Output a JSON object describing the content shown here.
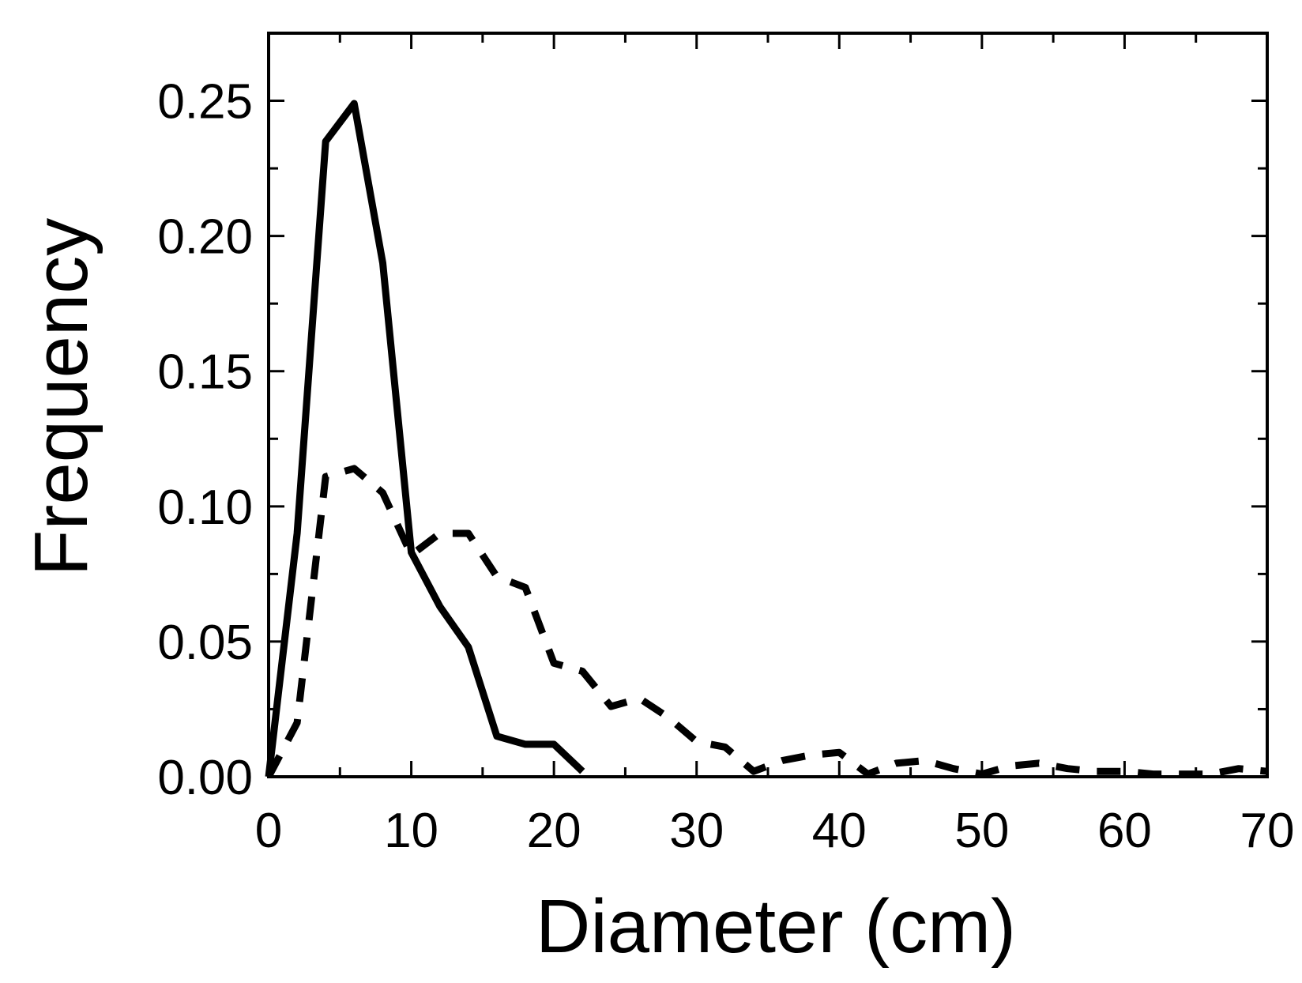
{
  "chart_data": {
    "type": "line",
    "title": "",
    "xlabel": "Diameter (cm)",
    "ylabel": "Frequency",
    "xlim": [
      0,
      70
    ],
    "ylim": [
      0,
      0.275
    ],
    "grid": false,
    "legend": "none",
    "x_ticks": [
      0,
      10,
      20,
      30,
      40,
      50,
      60,
      70
    ],
    "x_tick_labels": [
      "0",
      "10",
      "20",
      "30",
      "40",
      "50",
      "60",
      "70"
    ],
    "y_ticks": [
      0,
      0.05,
      0.1,
      0.15,
      0.2,
      0.25
    ],
    "y_tick_labels": [
      "0.00",
      "0.05",
      "0.10",
      "0.15",
      "0.20",
      "0.25"
    ],
    "y_minor_ticks": [
      0.025,
      0.075,
      0.125,
      0.175,
      0.225
    ],
    "series": [
      {
        "style": "solid",
        "color": "#000000",
        "x": [
          0,
          2,
          4,
          6,
          8,
          10,
          12,
          14,
          16,
          18,
          20,
          22
        ],
        "y": [
          0,
          0.09,
          0.235,
          0.249,
          0.19,
          0.083,
          0.063,
          0.048,
          0.015,
          0.012,
          0.012,
          0.002
        ]
      },
      {
        "style": "dashed",
        "color": "#000000",
        "x": [
          0,
          2,
          4,
          6,
          8,
          10,
          12,
          14,
          16,
          18,
          20,
          22,
          24,
          26,
          28,
          30,
          32,
          34,
          36,
          38,
          40,
          42,
          44,
          46,
          48,
          50,
          52,
          54,
          56,
          58,
          60,
          62,
          64,
          66,
          68,
          70
        ],
        "y": [
          0,
          0.02,
          0.111,
          0.114,
          0.105,
          0.082,
          0.09,
          0.09,
          0.074,
          0.07,
          0.042,
          0.039,
          0.026,
          0.029,
          0.022,
          0.013,
          0.011,
          0.002,
          0.006,
          0.008,
          0.009,
          0.001,
          0.005,
          0.006,
          0.003,
          0.001,
          0.004,
          0.005,
          0.003,
          0.002,
          0.002,
          0.001,
          0.001,
          0.001,
          0.003,
          0.002
        ]
      }
    ]
  }
}
